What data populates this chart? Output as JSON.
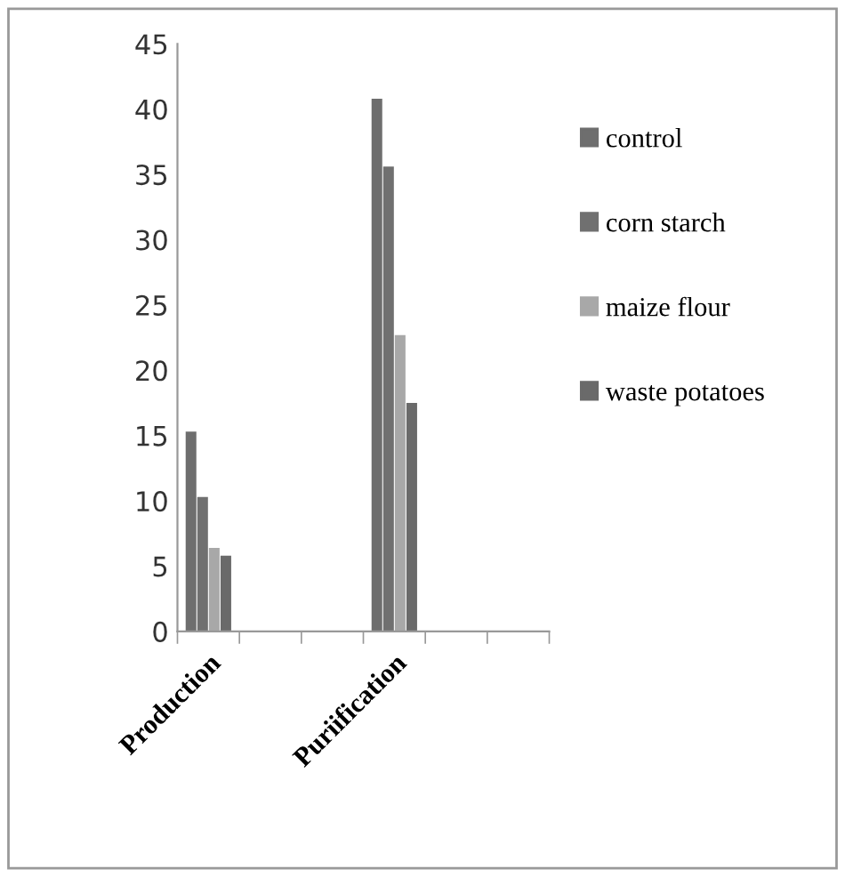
{
  "chart_data": {
    "type": "bar",
    "categories": [
      "Production",
      null,
      null,
      "Puriification",
      null,
      null
    ],
    "series": [
      {
        "name": "control",
        "color": "#6e6e6e",
        "values": [
          15.3,
          null,
          null,
          40.8,
          null,
          null
        ]
      },
      {
        "name": "corn starch",
        "color": "#707070",
        "values": [
          10.3,
          null,
          null,
          35.6,
          null,
          null
        ]
      },
      {
        "name": "maize flour",
        "color": "#a8a8a8",
        "values": [
          6.4,
          null,
          null,
          22.7,
          null,
          null
        ]
      },
      {
        "name": "waste potatoes",
        "color": "#6a6a6a",
        "values": [
          5.8,
          null,
          null,
          17.5,
          null,
          null
        ]
      }
    ],
    "ylim": [
      0,
      45
    ],
    "yticks": [
      0,
      5,
      10,
      15,
      20,
      25,
      30,
      35,
      40,
      45
    ],
    "grid": false,
    "legend": "right"
  }
}
